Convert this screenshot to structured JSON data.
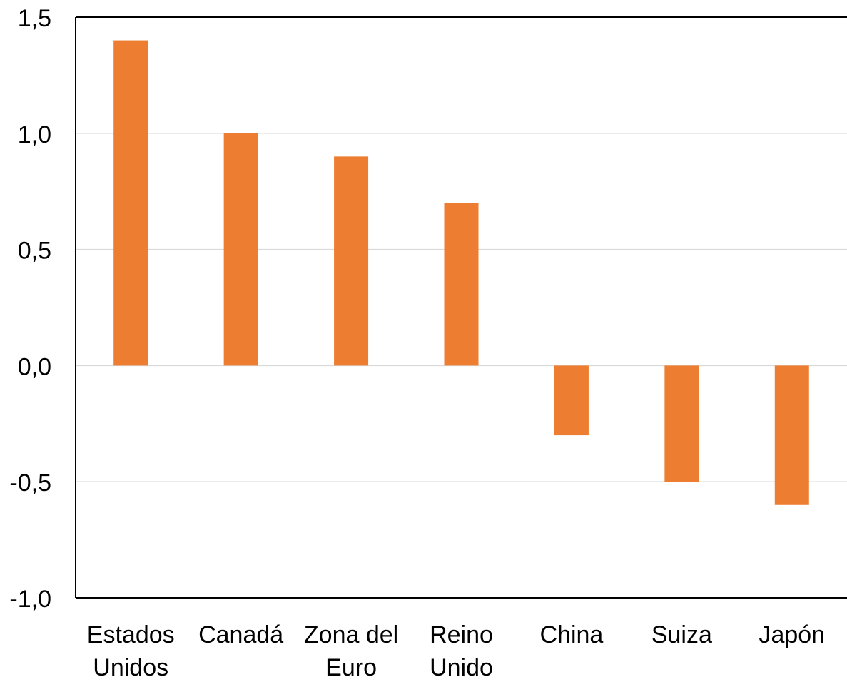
{
  "chart_data": {
    "type": "bar",
    "categories": [
      [
        "Estados",
        "Unidos"
      ],
      [
        "Canadá"
      ],
      [
        "Zona del",
        "Euro"
      ],
      [
        "Reino",
        "Unido"
      ],
      [
        "China"
      ],
      [
        "Suiza"
      ],
      [
        "Japón"
      ]
    ],
    "values": [
      1.4,
      1.0,
      0.9,
      0.7,
      -0.3,
      -0.5,
      -0.6
    ],
    "title": "",
    "xlabel": "",
    "ylabel": "",
    "ylim": [
      -1.0,
      1.5
    ],
    "yticks": [
      1.5,
      1.0,
      0.5,
      0.0,
      -0.5,
      -1.0
    ],
    "ytick_labels": [
      "1,5",
      "1,0",
      "0,5",
      "0,0",
      "-0,5",
      "-1,0"
    ],
    "grid": true,
    "bar_color": "#ED7D31",
    "gridline_color": "#D9D9D9",
    "axis_color": "#000000"
  }
}
